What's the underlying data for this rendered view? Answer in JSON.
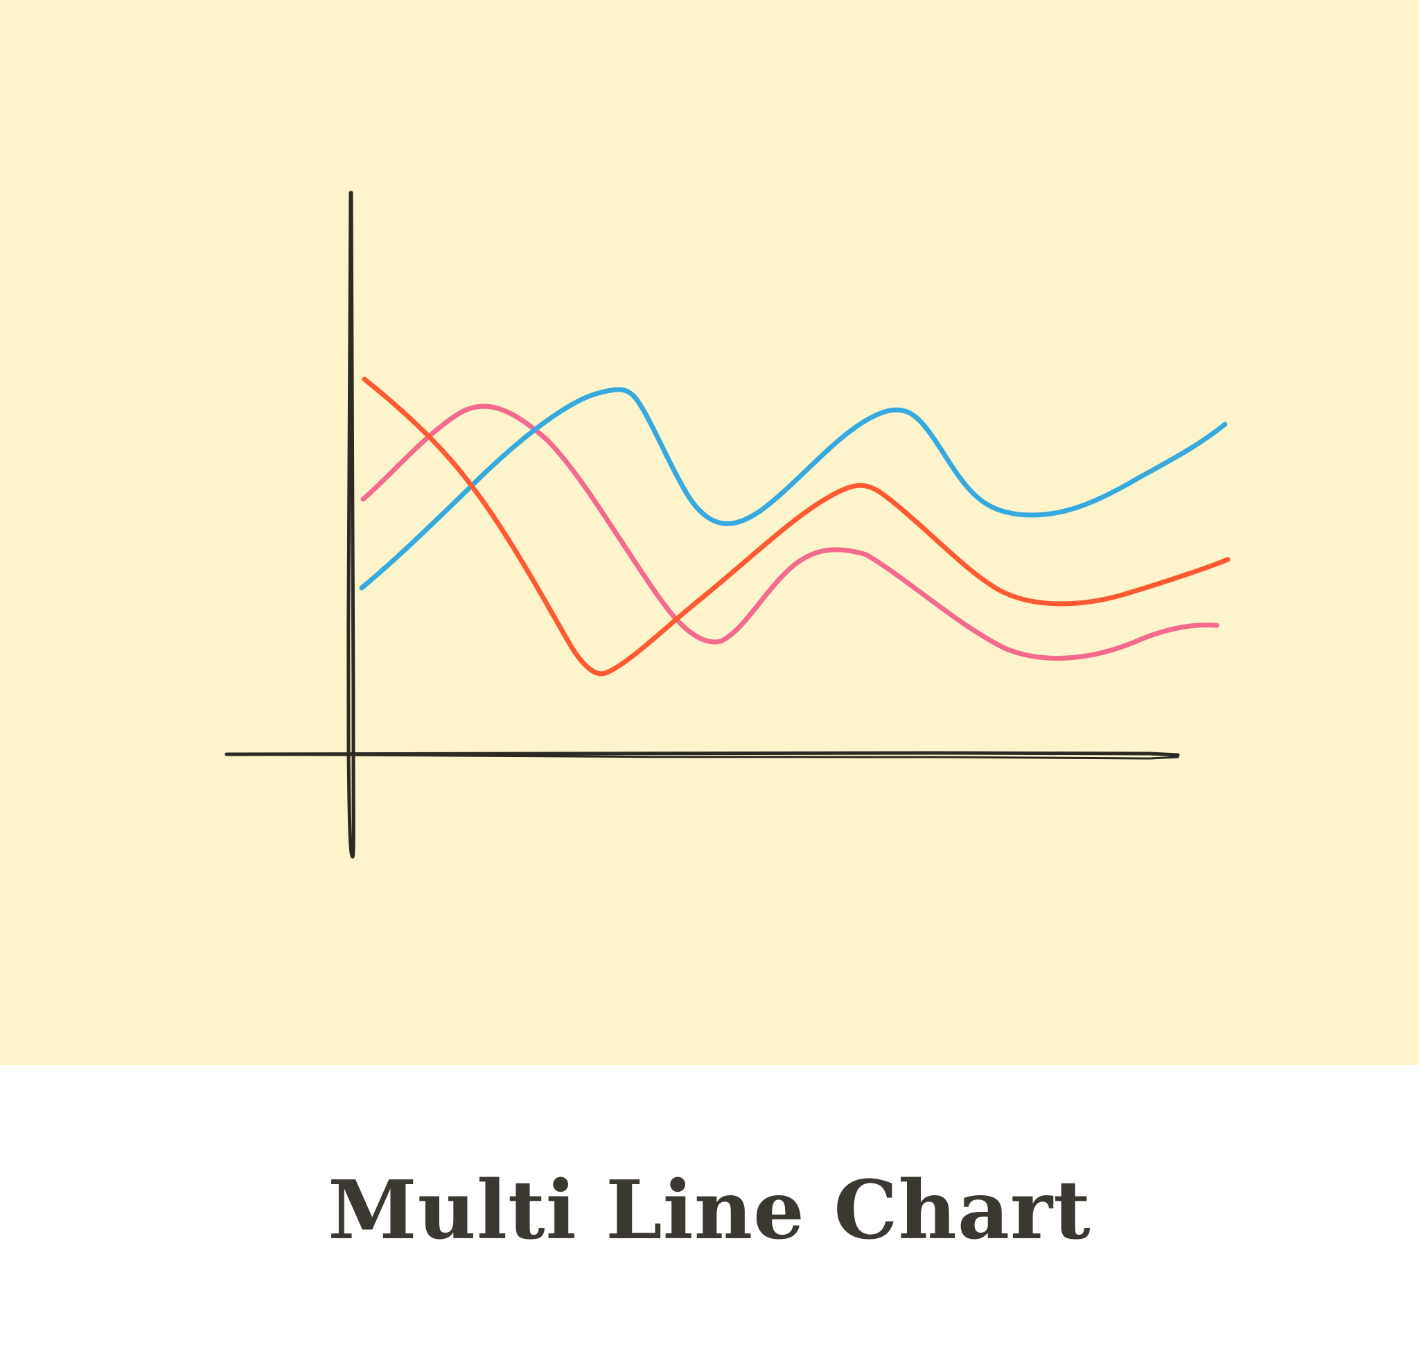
{
  "title": "Multi Line Chart",
  "colors": {
    "panel_background": "#fdf4cc",
    "page_background": "#ffffff",
    "axis": "#2b2a24",
    "title_text": "#3b3731"
  },
  "chart_data": {
    "type": "line",
    "title": "",
    "xlabel": "",
    "ylabel": "",
    "axis_ticks": false,
    "grid": false,
    "legend": "none",
    "series": [
      {
        "color": "#f46a8c",
        "shape": "starts high-middle, rises to an early peak, falls to a deep trough, recovers to a smaller hump, dips and levels off low"
      },
      {
        "color": "#36a9de",
        "shape": "starts middle, climbs to a high peak, drops to a trough, climbs to a second peak, dips and rises steadily to the right edge"
      },
      {
        "color": "#fd5a34",
        "shape": "starts at the top-left, falls steeply to a deep trough, recovers to a mid peak, dips and gently rises at the right edge"
      }
    ]
  }
}
